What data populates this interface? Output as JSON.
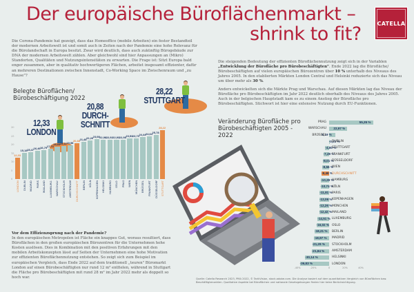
{
  "header": {
    "title_line1": "Der europäische Büroflächenmarkt –",
    "title_line2": "shrink to fit?",
    "logo": "CATELLA"
  },
  "intro_text": "Die Corona-Pandemie hat gezeigt, dass das Homeoffice (mobile Arbeiten) ein fester Bestandteil der modernen Arbeitswelt ist und somit auch in Zeiten nach der Pandemie eine hohe Relevanz für die Bürolandschaft in Europa besitzt. Zwar wird deutlich, dass auch zukünftig Bürogebäude zur DNA der modernen Arbeitswelt zählen. Aber gleichwohl sind hier Anpassungen an (Mikro) Standorten, Qualitäten und Nutzungsintensitäten zu erwarten. Die Frage ist: Sitzt Europa bald enger zusammen, aber in qualitativ hochwertigeren Flächen, arbeitet insgesamt effizienter, dafür an mehreren Destinationen zwischen Innenstadt, Co-Working Space im Zwischenraum und „zu Hause\"?",
  "right_text": {
    "p1_a": "Die steigenden Bedeutung der effizienten Büroflächennutzung zeigt sich in der Variablen ",
    "p1_bold": "„Entwicklung der Bürofläche pro Bürobeschäftigten\"",
    "p1_b": ". Ende 2022 lag die Bürofläche/ Bürobeschäftigten auf vielen europäischen Bürozentren über ",
    "p1_bold2": "10 %",
    "p1_c": " unterhalb des Niveaus des Jahres 2005. In den etablierten Märkten London Central und Helsinki reduzierte sich das Niveau um über mehr als ",
    "p1_bold3": "30 %",
    "p1_d": ".",
    "p2": "Anders entwickelten sich die Märkte Prag und Warschau. Auf diesen Märkten lag das Niveau der Bürofläche pro Bürobeschäftigten im Jahr 2022 deutlich oberhalb des Niveaus des Jahres 2005. Auch in der belgischen Hauptstadt kam es zu einem Anstieg der Bürofläche pro Bürobeschäftigten. Stichwort ist hier eine extensive Nutzung durch EU-Funktionen."
  },
  "bottom_text": {
    "heading": "Vor dem Effizienzsprung nach der Pandemie?",
    "body": "In den europäischen Metropolen ist Fläche ein knappes Gut, woraus resultiert, dass Büroflächen in den großen europäischen Bürozentren für die Unternehmen hohe Kosten auslösen. Dies in Kombination mit den positiven Erfahrungen mit den mobilen Arbeitskonzepten lässt auf Seiten der Unternehmen eine hohe Motivation zur effizienten Büroflächennutzung entstehen. So zeigt sich zum Beispiel im europäischen Vergleich, dass Ende 2022 auf dem traditionell „teuren\" Büromarkt London auf einen Bürobeschäftigten nur rund 12 m² entfielen, während in Stuttgart die Fläche pro Bürobeschäftigten mit rund 28 m² im Jahr 2022 mehr als doppelt so hoch war."
  },
  "callouts": {
    "london": {
      "value": "12,33",
      "label": "LONDON"
    },
    "average": {
      "value": "20,88",
      "label1": "DURCH-",
      "label2": "SCHNITT"
    },
    "stuttgart": {
      "value": "28,22",
      "label": "STUTTGART"
    }
  },
  "colors": {
    "brand": "#b5213a",
    "bar": "#a7c8c3",
    "highlight": "#e58a46",
    "navy": "#1f3660",
    "background": "#e9eeed"
  },
  "source": "Quelle: Catella Research 2023, PMA 2022, © TarikVision, stock.adobe.com. Die Analyse basiert auf dem quantitativen Vergleich von Büroflächen bzw. Beschäftigtenzahlen. Qualitative Aspekte bei Büroflächen und nationale Gesetzgebungen finden hier keine Berücksichtigung.",
  "chart_data": [
    {
      "type": "bar",
      "title": "Belegte Büroflächen/ Bürobeschäftigung 2022",
      "ylabel": "m²",
      "ylim": [
        0,
        30
      ],
      "grid": false,
      "categories": [
        "LONDON",
        "DUBLIN",
        "MADRID",
        "PARIS",
        "MAILAND",
        "LUXEMBURG",
        "WARSCHAU",
        "STOCKHOLM",
        "AMSTERDAM",
        "DURCHSCHNITT",
        "BERLIN",
        "KÖLN",
        "KOPENHAGEN",
        "HELSINKI",
        "HAMBURG",
        "OSLO",
        "PRAG",
        "WIEN",
        "MÜNCHEN",
        "BRÜSSEL",
        "FRANKFURT",
        "DÜSSELDORF",
        "STUTTGART"
      ],
      "values": [
        12.33,
        15.18,
        15.47,
        16.46,
        16.79,
        17.73,
        18.68,
        19.11,
        19.58,
        20.88,
        21.48,
        22.26,
        23.08,
        22.98,
        22.92,
        22.93,
        22.98,
        23.53,
        23.73,
        24.44,
        24.64,
        25.78,
        28.22
      ],
      "highlight": [
        "LONDON",
        "DURCHSCHNITT",
        "STUTTGART"
      ]
    },
    {
      "type": "bar",
      "orientation": "horizontal",
      "title": "Veränderung Bürofläche pro Bürobeschäftigten 2005 - 2022",
      "xlabel": "",
      "xlim": [
        -40,
        40
      ],
      "xticks": [
        "-40%",
        "-20%",
        "0",
        "20%",
        "40%"
      ],
      "categories": [
        "PRAG",
        "WARSCHAU",
        "BRÜSSEL",
        "DUBLIN",
        "STUTTGART",
        "FRANKFURT",
        "DÜSSELDORF",
        "WIEN",
        "DURCHSCHNITT",
        "HAMBURG",
        "KÖLN",
        "PARIS",
        "KOPENHAGEN",
        "MÜNCHEN",
        "MAILAND",
        "LUXEMBURG",
        "OSLO",
        "BERLIN",
        "MADRID",
        "STOCKHOLM",
        "AMSTERDAM",
        "HELSINKI",
        "LONDON"
      ],
      "values": [
        55.35,
        22.97,
        8.19,
        -0.21,
        -4.8,
        -7.28,
        -8.01,
        -8.56,
        -9.46,
        -10.29,
        -10.74,
        -11.81,
        -12.06,
        -12.26,
        -12.42,
        -14.51,
        -16.02,
        -18.21,
        -18.97,
        -21.29,
        -21.84,
        -30.14,
        -36.83
      ],
      "labels": [
        "55,35 %",
        "22,97 %",
        "8,19 %",
        "-0,21 %",
        "-4,80 %",
        "-7,28 %",
        "-8,01 %",
        "-8,56 %",
        "-9,46 %",
        "-10,29 %",
        "-10,74 %",
        "-11,81 %",
        "-12,06 %",
        "-12,26 %",
        "-12,42 %",
        "-14,51 %",
        "-16,02 %",
        "-18,21 %",
        "-18,97 %",
        "-21,29 %",
        "-21,84 %",
        "-30,14 %",
        "-36,83 %"
      ],
      "highlight": [
        "DURCHSCHNITT"
      ]
    }
  ]
}
